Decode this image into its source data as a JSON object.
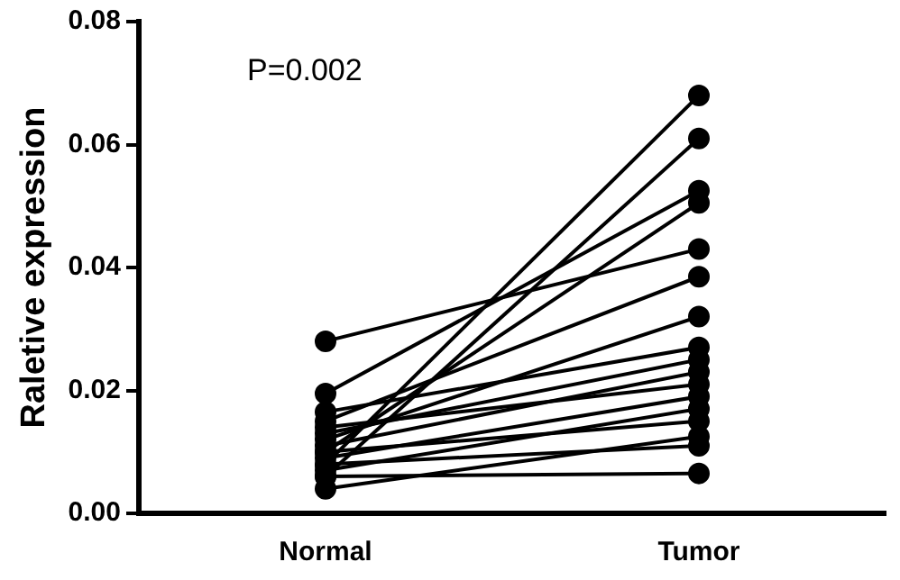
{
  "chart_data": {
    "type": "line",
    "ylabel": "Raletive expression",
    "categories": [
      "Normal",
      "Tumor"
    ],
    "ylim": [
      0,
      0.08
    ],
    "yticks": [
      {
        "value": 0,
        "label": "0.00"
      },
      {
        "value": 0.02,
        "label": "0.02"
      },
      {
        "value": 0.04,
        "label": "0.04"
      },
      {
        "value": 0.06,
        "label": "0.06"
      },
      {
        "value": 0.08,
        "label": "0.08"
      }
    ],
    "grid": false,
    "legend": false,
    "marker": "circle",
    "line_style": "solid",
    "annotations": [
      "P=0.002"
    ],
    "series": [
      {
        "color": "#000000",
        "values": [
          0.008,
          0.068
        ]
      },
      {
        "color": "#000000",
        "values": [
          0.006,
          0.061
        ]
      },
      {
        "color": "#000000",
        "values": [
          0.0195,
          0.0525
        ]
      },
      {
        "color": "#000000",
        "values": [
          0.01,
          0.0505
        ]
      },
      {
        "color": "#000000",
        "values": [
          0.028,
          0.043
        ]
      },
      {
        "color": "#000000",
        "values": [
          0.015,
          0.0385
        ]
      },
      {
        "color": "#000000",
        "values": [
          0.012,
          0.032
        ]
      },
      {
        "color": "#000000",
        "values": [
          0.0165,
          0.027
        ]
      },
      {
        "color": "#000000",
        "values": [
          0.013,
          0.025
        ]
      },
      {
        "color": "#000000",
        "values": [
          0.011,
          0.023
        ]
      },
      {
        "color": "#000000",
        "values": [
          0.014,
          0.021
        ]
      },
      {
        "color": "#000000",
        "values": [
          0.009,
          0.019
        ]
      },
      {
        "color": "#000000",
        "values": [
          0.007,
          0.017
        ]
      },
      {
        "color": "#000000",
        "values": [
          0.01,
          0.015
        ]
      },
      {
        "color": "#000000",
        "values": [
          0.004,
          0.0125
        ]
      },
      {
        "color": "#000000",
        "values": [
          0.008,
          0.011
        ]
      },
      {
        "color": "#000000",
        "values": [
          0.006,
          0.0065
        ]
      }
    ]
  }
}
